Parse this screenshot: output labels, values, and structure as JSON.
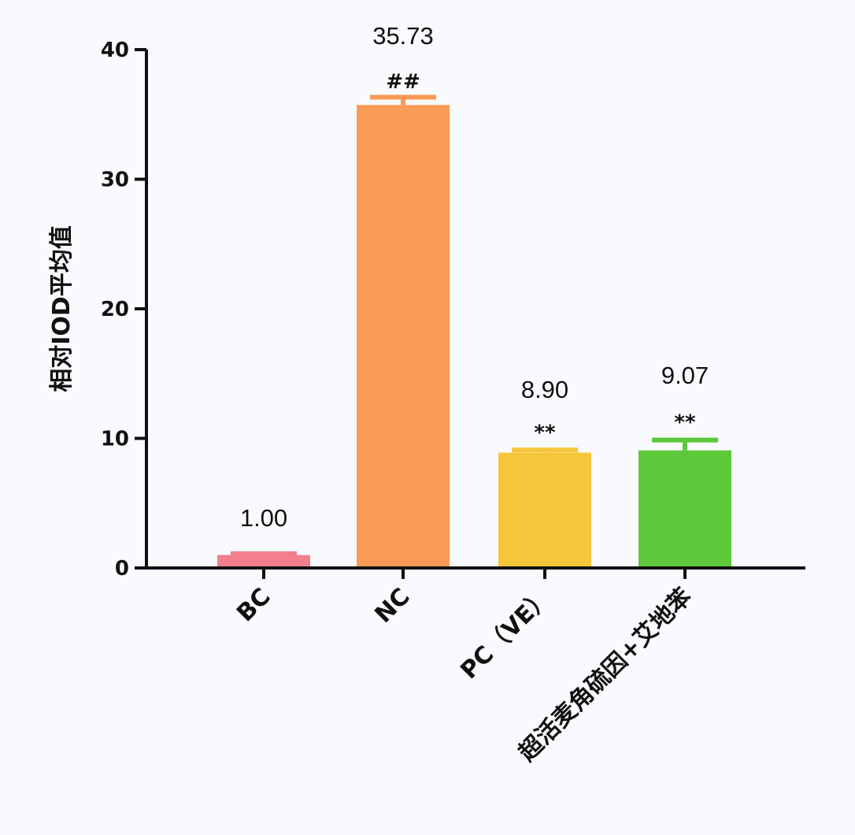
{
  "chart_data": {
    "type": "bar",
    "title": "",
    "xlabel": "",
    "ylabel": "相对IOD平均值",
    "ylim": [
      0,
      40
    ],
    "yticks": [
      0,
      10,
      20,
      30,
      40
    ],
    "grid": false,
    "legend": null,
    "categories": [
      "BC",
      "NC",
      "PC（VE）",
      "超活麦角硫因+艾地苯"
    ],
    "values": [
      1.0,
      35.73,
      8.9,
      9.07
    ],
    "value_labels": [
      "1.00",
      "35.73",
      "8.90",
      "9.07"
    ],
    "error_bars": [
      0.1,
      0.6,
      0.2,
      0.8
    ],
    "significance": [
      "",
      "##",
      "**",
      "**"
    ],
    "colors": [
      "#F27E8E",
      "#F99A55",
      "#F5C63A",
      "#5CC83A"
    ]
  }
}
